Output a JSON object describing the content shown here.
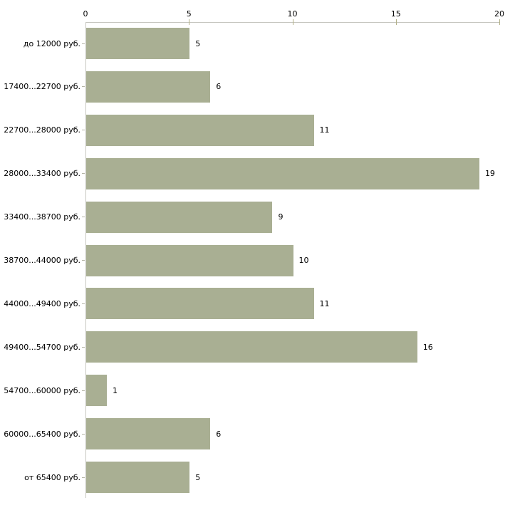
{
  "chart_data": {
    "type": "bar",
    "orientation": "horizontal",
    "title": "",
    "xlabel": "",
    "ylabel": "",
    "categories": [
      "до 12000 руб.",
      "17400...22700 руб.",
      "22700...28000 руб.",
      "28000...33400 руб.",
      "33400...38700 руб.",
      "38700...44000 руб.",
      "44000...49400 руб.",
      "49400...54700 руб.",
      "54700...60000 руб.",
      "60000...65400 руб.",
      "от 65400 руб."
    ],
    "values": [
      5,
      6,
      11,
      19,
      9,
      10,
      11,
      16,
      1,
      6,
      5
    ],
    "x_ticks": [
      0,
      5,
      10,
      15,
      20
    ],
    "xlim": [
      0,
      20
    ],
    "grid": false,
    "legend": false,
    "axis_position": "top",
    "bar_color": "#a9af93",
    "axis_line_color": "#c6c6c0",
    "tick_mark_color": "#b3b189",
    "category_tick_color": "#b4b4a6",
    "text_color": "#000000",
    "background_color": "#ffffff"
  }
}
